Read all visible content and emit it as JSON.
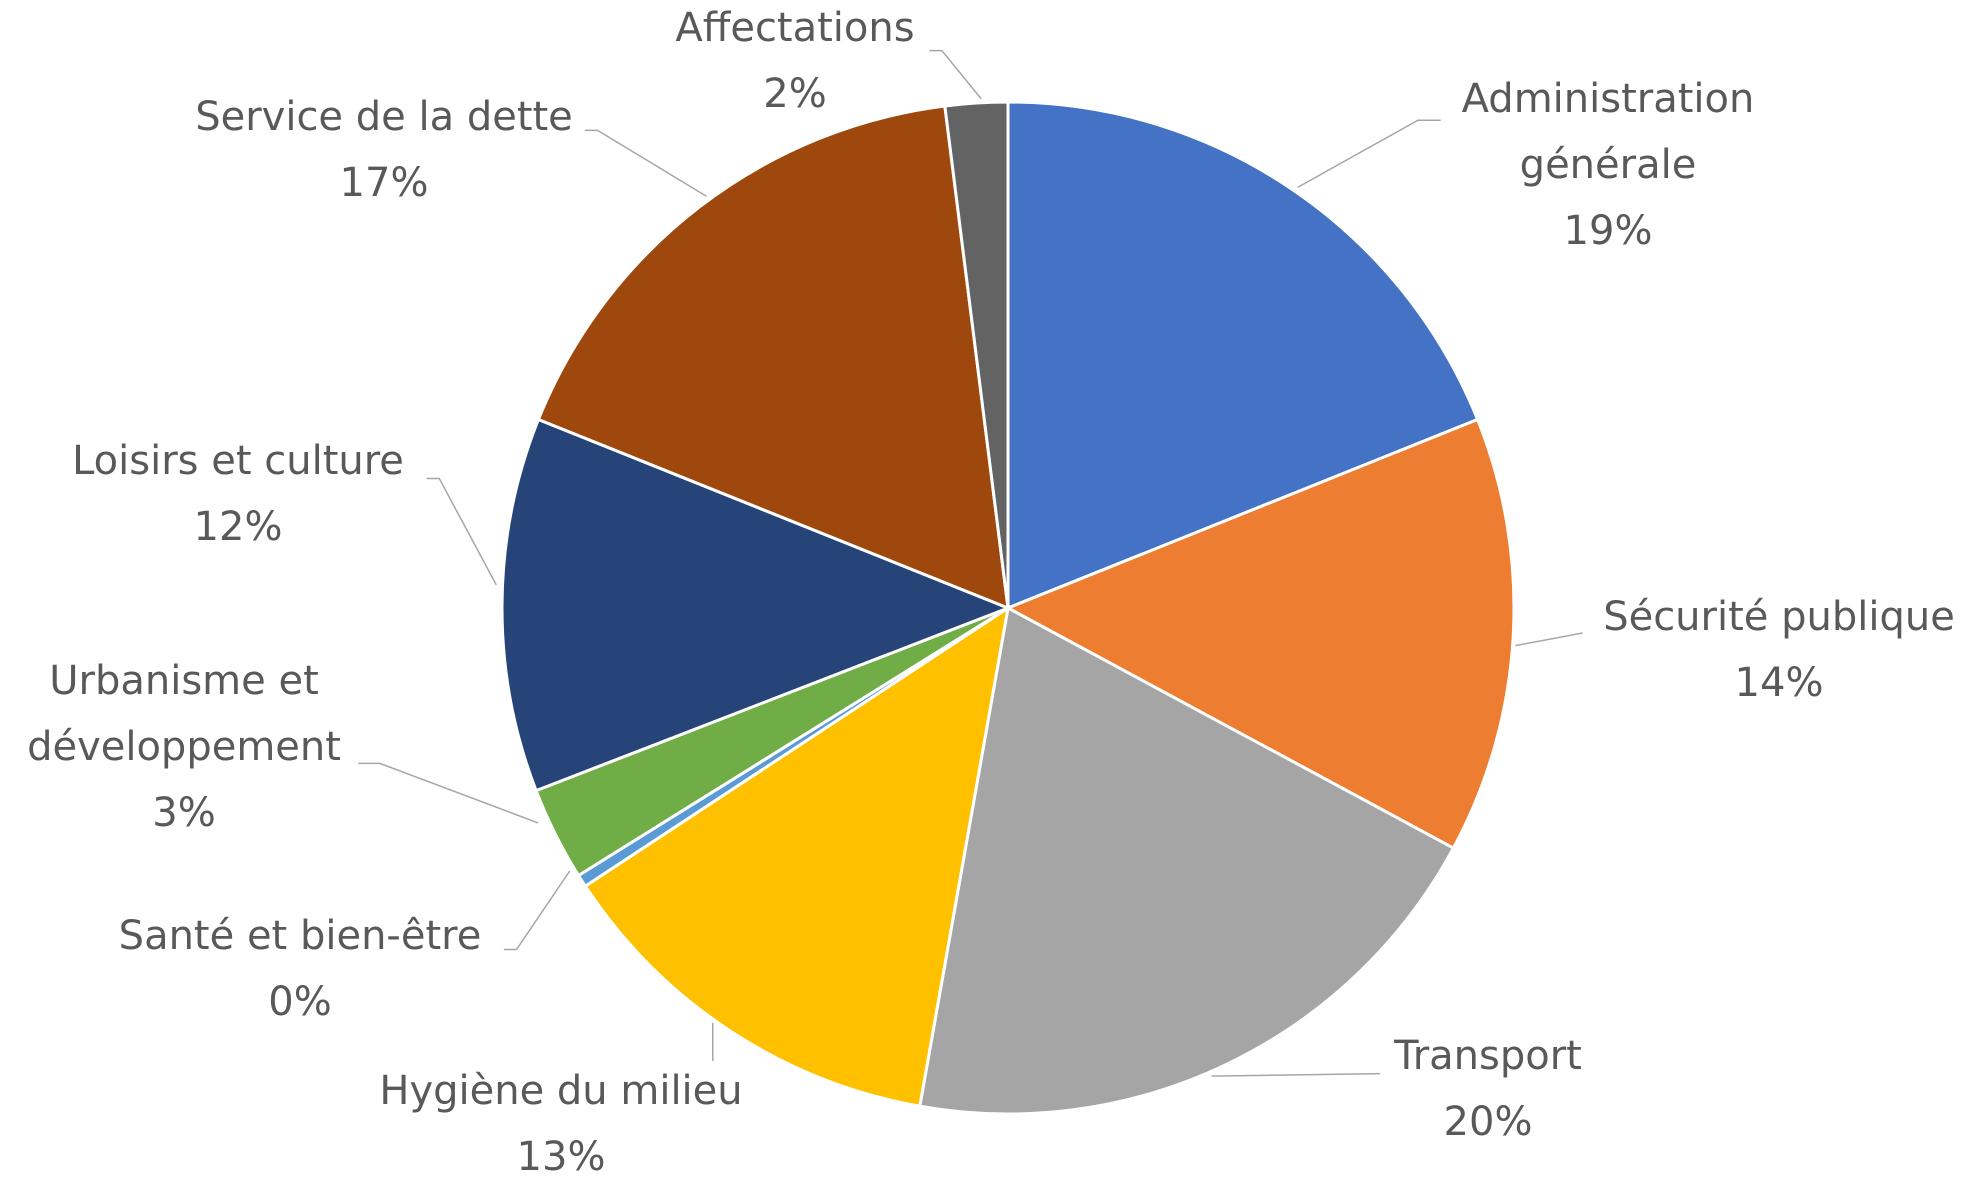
{
  "chart_data": {
    "type": "pie",
    "categories": [
      "Administration générale",
      "Sécurité publique",
      "Transport",
      "Hygiène du milieu",
      "Santé et bien-être",
      "Urbanisme et développement",
      "Loisirs et culture",
      "Service de la dette",
      "Affectations"
    ],
    "values": [
      19,
      14,
      20,
      13,
      0.4,
      3,
      12,
      17,
      2
    ],
    "value_labels": [
      "19%",
      "14%",
      "20%",
      "13%",
      "0%",
      "3%",
      "12%",
      "17%",
      "2%"
    ],
    "colors": [
      "#4472c4",
      "#ed7d31",
      "#a5a5a5",
      "#ffc000",
      "#5b9bd5",
      "#70ad47",
      "#264478",
      "#9e480e",
      "#636363"
    ]
  }
}
